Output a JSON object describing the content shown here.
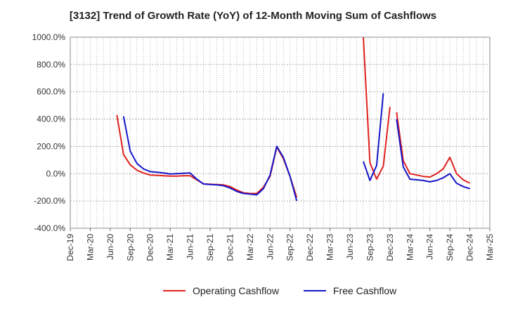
{
  "chart_data": {
    "type": "line",
    "title": "[3132]  Trend of Growth Rate (YoY) of 12-Month Moving Sum of Cashflows",
    "xlabel": "",
    "ylabel": "",
    "ylim": [
      -400,
      1000
    ],
    "y_tick_values": [
      -400,
      -200,
      0,
      200,
      400,
      600,
      800,
      1000
    ],
    "y_tick_labels": [
      "-400.0%",
      "-200.0%",
      "0.0%",
      "200.0%",
      "400.0%",
      "600.0%",
      "800.0%",
      "1000.0%"
    ],
    "x_tick_labels": [
      "Dec-19",
      "Mar-20",
      "Jun-20",
      "Sep-20",
      "Dec-20",
      "Mar-21",
      "Jun-21",
      "Sep-21",
      "Dec-21",
      "Mar-22",
      "Jun-22",
      "Sep-22",
      "Dec-22",
      "Mar-23",
      "Jun-23",
      "Sep-23",
      "Dec-23",
      "Mar-24",
      "Jun-24",
      "Sep-24",
      "Dec-24",
      "Mar-25"
    ],
    "x_range": [
      "2019-12",
      "2025-03"
    ],
    "grid": true,
    "legend_position": "bottom",
    "series": [
      {
        "name": "Operating Cashflow",
        "color": "#e0211e",
        "points": [
          [
            "2020-07",
            430
          ],
          [
            "2020-08",
            140
          ],
          [
            "2020-09",
            65
          ],
          [
            "2020-10",
            25
          ],
          [
            "2020-11",
            5
          ],
          [
            "2020-12",
            -10
          ],
          [
            "2021-01",
            -12
          ],
          [
            "2021-02",
            -15
          ],
          [
            "2021-03",
            -18
          ],
          [
            "2021-04",
            -18
          ],
          [
            "2021-05",
            -15
          ],
          [
            "2021-06",
            -15
          ],
          [
            "2021-07",
            -45
          ],
          [
            "2021-08",
            -75
          ],
          [
            "2021-09",
            -78
          ],
          [
            "2021-10",
            -80
          ],
          [
            "2021-11",
            -82
          ],
          [
            "2021-12",
            -95
          ],
          [
            "2022-01",
            -120
          ],
          [
            "2022-02",
            -140
          ],
          [
            "2022-03",
            -145
          ],
          [
            "2022-04",
            -145
          ],
          [
            "2022-05",
            -100
          ],
          [
            "2022-06",
            -20
          ],
          [
            "2022-07",
            195
          ],
          [
            "2022-08",
            110
          ],
          [
            "2022-09",
            -20
          ],
          [
            "2022-10",
            -175
          ],
          null,
          [
            "2023-08",
            1000
          ],
          [
            "2023-09",
            80
          ],
          [
            "2023-10",
            -40
          ],
          [
            "2023-11",
            55
          ],
          [
            "2023-12",
            490
          ],
          null,
          [
            "2024-01",
            450
          ],
          [
            "2024-02",
            95
          ],
          [
            "2024-03",
            0
          ],
          [
            "2024-04",
            -10
          ],
          [
            "2024-05",
            -20
          ],
          [
            "2024-06",
            -25
          ],
          [
            "2024-07",
            0
          ],
          [
            "2024-08",
            35
          ],
          [
            "2024-09",
            120
          ],
          [
            "2024-10",
            0
          ],
          [
            "2024-11",
            -45
          ],
          [
            "2024-12",
            -70
          ]
        ]
      },
      {
        "name": "Free Cashflow",
        "color": "#1515c8",
        "points": [
          [
            "2020-08",
            420
          ],
          [
            "2020-09",
            165
          ],
          [
            "2020-10",
            75
          ],
          [
            "2020-11",
            35
          ],
          [
            "2020-12",
            15
          ],
          [
            "2021-01",
            10
          ],
          [
            "2021-02",
            5
          ],
          [
            "2021-03",
            -2
          ],
          [
            "2021-04",
            0
          ],
          [
            "2021-05",
            3
          ],
          [
            "2021-06",
            5
          ],
          [
            "2021-07",
            -40
          ],
          [
            "2021-08",
            -75
          ],
          [
            "2021-09",
            -80
          ],
          [
            "2021-10",
            -82
          ],
          [
            "2021-11",
            -88
          ],
          [
            "2021-12",
            -105
          ],
          [
            "2022-01",
            -130
          ],
          [
            "2022-02",
            -145
          ],
          [
            "2022-03",
            -150
          ],
          [
            "2022-04",
            -155
          ],
          [
            "2022-05",
            -110
          ],
          [
            "2022-06",
            -10
          ],
          [
            "2022-07",
            200
          ],
          [
            "2022-08",
            120
          ],
          [
            "2022-09",
            -20
          ],
          [
            "2022-10",
            -200
          ],
          null,
          [
            "2023-08",
            90
          ],
          [
            "2023-09",
            -50
          ],
          [
            "2023-10",
            60
          ],
          [
            "2023-11",
            590
          ],
          null,
          [
            "2024-01",
            400
          ],
          [
            "2024-02",
            50
          ],
          [
            "2024-03",
            -40
          ],
          [
            "2024-04",
            -45
          ],
          [
            "2024-05",
            -50
          ],
          [
            "2024-06",
            -60
          ],
          [
            "2024-07",
            -50
          ],
          [
            "2024-08",
            -30
          ],
          [
            "2024-09",
            0
          ],
          [
            "2024-10",
            -70
          ],
          [
            "2024-11",
            -95
          ],
          [
            "2024-12",
            -110
          ]
        ]
      }
    ]
  }
}
